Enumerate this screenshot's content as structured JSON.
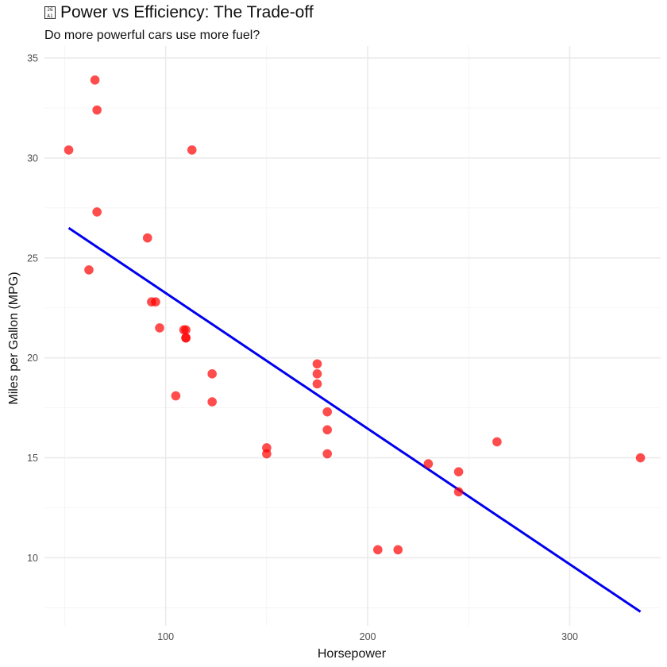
{
  "chart_data": {
    "type": "scatter",
    "title": "Power vs Efficiency: The Trade-off",
    "title_icon": "chart-icon",
    "subtitle": "Do more powerful cars use more fuel?",
    "xlabel": "Horsepower",
    "ylabel": "Miles per Gallon (MPG)",
    "xlim": [
      40,
      345
    ],
    "ylim": [
      6.6,
      35.6
    ],
    "x_ticks": [
      100,
      200,
      300
    ],
    "y_ticks": [
      10,
      15,
      20,
      25,
      30,
      35
    ],
    "grid": true,
    "point_color": "#FF0000",
    "line_color": "#0000EE",
    "points": [
      {
        "x": 110,
        "y": 21.0
      },
      {
        "x": 110,
        "y": 21.0
      },
      {
        "x": 93,
        "y": 22.8
      },
      {
        "x": 110,
        "y": 21.4
      },
      {
        "x": 175,
        "y": 18.7
      },
      {
        "x": 105,
        "y": 18.1
      },
      {
        "x": 245,
        "y": 14.3
      },
      {
        "x": 62,
        "y": 24.4
      },
      {
        "x": 95,
        "y": 22.8
      },
      {
        "x": 123,
        "y": 19.2
      },
      {
        "x": 123,
        "y": 17.8
      },
      {
        "x": 180,
        "y": 16.4
      },
      {
        "x": 180,
        "y": 17.3
      },
      {
        "x": 180,
        "y": 15.2
      },
      {
        "x": 205,
        "y": 10.4
      },
      {
        "x": 215,
        "y": 10.4
      },
      {
        "x": 230,
        "y": 14.7
      },
      {
        "x": 66,
        "y": 32.4
      },
      {
        "x": 52,
        "y": 30.4
      },
      {
        "x": 65,
        "y": 33.9
      },
      {
        "x": 97,
        "y": 21.5
      },
      {
        "x": 150,
        "y": 15.5
      },
      {
        "x": 150,
        "y": 15.2
      },
      {
        "x": 245,
        "y": 13.3
      },
      {
        "x": 175,
        "y": 19.2
      },
      {
        "x": 66,
        "y": 27.3
      },
      {
        "x": 91,
        "y": 26.0
      },
      {
        "x": 113,
        "y": 30.4
      },
      {
        "x": 264,
        "y": 15.8
      },
      {
        "x": 175,
        "y": 19.7
      },
      {
        "x": 335,
        "y": 15.0
      },
      {
        "x": 109,
        "y": 21.4
      }
    ],
    "trend_line": {
      "x": [
        52,
        335
      ],
      "y": [
        26.5,
        7.3
      ]
    }
  }
}
